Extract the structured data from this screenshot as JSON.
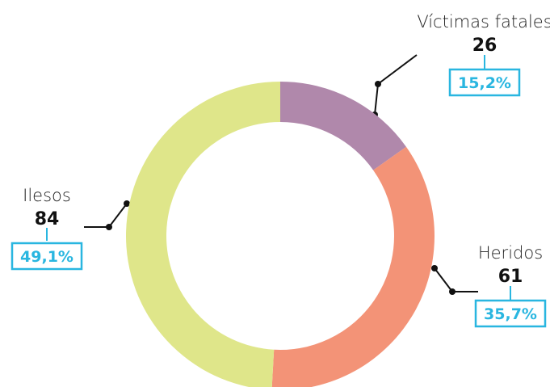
{
  "chart_data": {
    "type": "donut",
    "categories": [
      "Víctimas fatales",
      "Heridos",
      "Ilesos"
    ],
    "values": [
      26,
      61,
      84
    ],
    "percent_labels": [
      "15,2%",
      "35,7%",
      "49,1%"
    ],
    "colors": [
      "#b088ab",
      "#f39377",
      "#dfe68a"
    ]
  }
}
